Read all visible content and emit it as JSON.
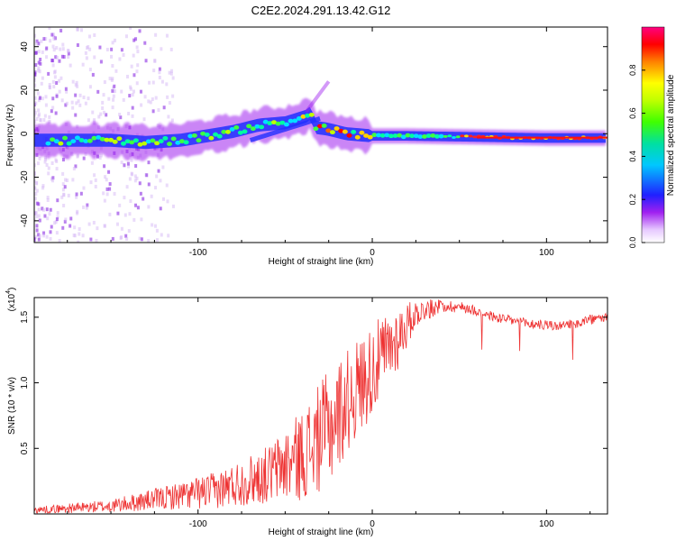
{
  "title": "C2E2.2024.291.13.42.G12",
  "chart_data": [
    {
      "type": "heatmap",
      "title": "C2E2.2024.291.13.42.G12",
      "xlabel": "Height of straight line (km)",
      "ylabel": "Frequency (Hz)",
      "xlim": [
        -194,
        135
      ],
      "ylim": [
        -50,
        49
      ],
      "xticks": [
        -100,
        0,
        100
      ],
      "yticks": [
        -40,
        -20,
        0,
        20,
        40
      ],
      "colorbar": {
        "label": "Normalized spectral amplitude",
        "range": [
          0,
          1
        ],
        "ticks": [
          0.0,
          0.2,
          0.4,
          0.6,
          0.8
        ]
      },
      "ridge": [
        {
          "x": -194,
          "y": -3
        },
        {
          "x": -150,
          "y": -3
        },
        {
          "x": -130,
          "y": -4
        },
        {
          "x": -110,
          "y": -3
        },
        {
          "x": -95,
          "y": -1
        },
        {
          "x": -80,
          "y": 1
        },
        {
          "x": -65,
          "y": 4
        },
        {
          "x": -50,
          "y": 5
        },
        {
          "x": -38,
          "y": 8
        },
        {
          "x": -35,
          "y": 10
        },
        {
          "x": -33,
          "y": 3
        },
        {
          "x": -25,
          "y": 2
        },
        {
          "x": -15,
          "y": 0
        },
        {
          "x": 0,
          "y": -1
        },
        {
          "x": 20,
          "y": -1
        },
        {
          "x": 60,
          "y": -1.5
        },
        {
          "x": 100,
          "y": -2
        },
        {
          "x": 135,
          "y": -2
        }
      ]
    },
    {
      "type": "line",
      "xlabel": "Height of straight line (km)",
      "ylabel": "SNR (10 * v/v)",
      "y_multiplier": "(x10^4)",
      "y_multiplier_base": "(x10",
      "y_multiplier_exp": "4",
      "y_multiplier_close": ")",
      "xlim": [
        -194,
        135
      ],
      "ylim": [
        0,
        16500
      ],
      "xticks": [
        -100,
        0,
        100
      ],
      "yticks": [
        0.5,
        1.0,
        1.5
      ],
      "ytick_labels": [
        "0.5",
        "1.0",
        "1.5"
      ],
      "series": [
        {
          "name": "SNR",
          "color": "#ee3333",
          "envelope": [
            {
              "x": -194,
              "mean": 300,
              "amp": 250
            },
            {
              "x": -150,
              "mean": 600,
              "amp": 500
            },
            {
              "x": -120,
              "mean": 1200,
              "amp": 900
            },
            {
              "x": -90,
              "mean": 1800,
              "amp": 1400
            },
            {
              "x": -60,
              "mean": 3000,
              "amp": 2200
            },
            {
              "x": -40,
              "mean": 4500,
              "amp": 3500
            },
            {
              "x": -25,
              "mean": 6500,
              "amp": 4500
            },
            {
              "x": -15,
              "mean": 8500,
              "amp": 4000
            },
            {
              "x": 0,
              "mean": 11000,
              "amp": 3500
            },
            {
              "x": 15,
              "mean": 13500,
              "amp": 2500
            },
            {
              "x": 25,
              "mean": 15300,
              "amp": 1000
            },
            {
              "x": 40,
              "mean": 15900,
              "amp": 500
            },
            {
              "x": 55,
              "mean": 15700,
              "amp": 400
            },
            {
              "x": 70,
              "mean": 15000,
              "amp": 400
            },
            {
              "x": 90,
              "mean": 14500,
              "amp": 400
            },
            {
              "x": 110,
              "mean": 14300,
              "amp": 400
            },
            {
              "x": 125,
              "mean": 14800,
              "amp": 400
            },
            {
              "x": 135,
              "mean": 15000,
              "amp": 300
            }
          ]
        }
      ]
    }
  ]
}
